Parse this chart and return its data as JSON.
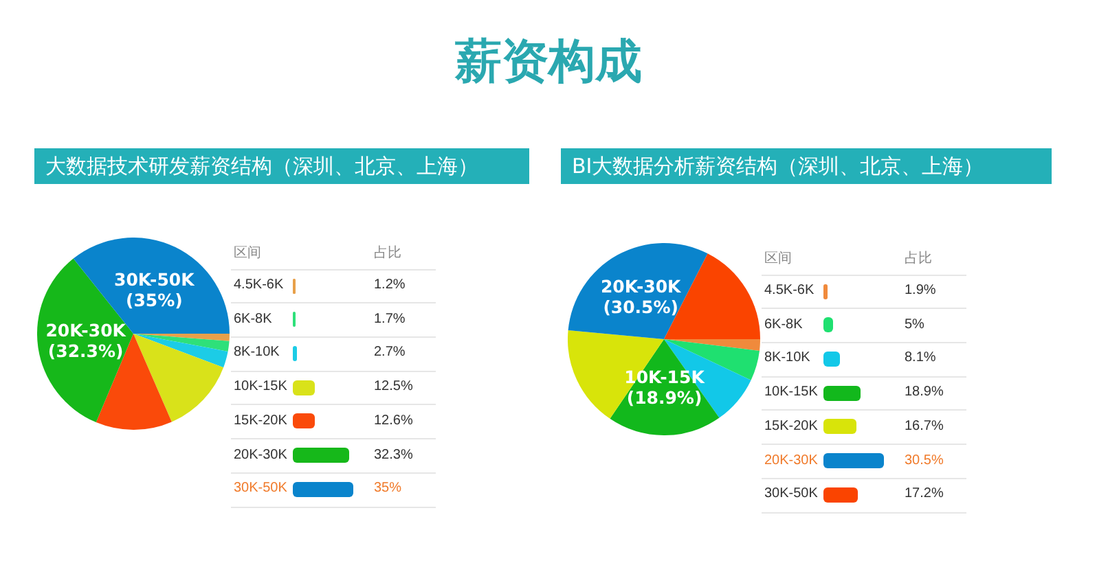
{
  "chart_data": [
    {
      "type": "pie",
      "title": "薪资构成",
      "subtitle": "大数据技术研发薪资结构（深圳、北京、上海）",
      "categories": [
        "4.5K-6K",
        "6K-8K",
        "8K-10K",
        "10K-15K",
        "15K-20K",
        "20K-30K",
        "30K-50K"
      ],
      "values": [
        1.2,
        1.7,
        2.7,
        12.5,
        12.6,
        32.3,
        35
      ],
      "colors": [
        "#e8a04a",
        "#2ee07a",
        "#1ccce6",
        "#d9e21a",
        "#fa4a0a",
        "#16b81a",
        "#0a84cc"
      ],
      "value_labels": [
        "1.2%",
        "1.7%",
        "2.7%",
        "12.5%",
        "12.6%",
        "32.3%",
        "35%"
      ],
      "legend": "right",
      "legend_title": "区间",
      "annotations": [
        "占比",
        {
          "text": "30K-50K (35%)",
          "x": "30K-50K"
        },
        {
          "text": "20K-30K (32.3%)",
          "x": "20K-30K"
        }
      ]
    },
    {
      "type": "pie",
      "subtitle": "BI大数据分析薪资结构（深圳、北京、上海）",
      "categories": [
        "4.5K-6K",
        "6K-8K",
        "8K-10K",
        "10K-15K",
        "15K-20K",
        "20K-30K",
        "30K-50K"
      ],
      "values": [
        1.9,
        5,
        8.1,
        18.9,
        16.7,
        30.5,
        17.2
      ],
      "colors": [
        "#f08a3c",
        "#1fe070",
        "#12c8e8",
        "#12b81c",
        "#d8e40a",
        "#0a84cc",
        "#fa4400"
      ],
      "value_labels": [
        "1.9%",
        "5%",
        "8.1%",
        "18.9%",
        "16.7%",
        "30.5%",
        "17.2%"
      ],
      "legend": "right",
      "legend_title": "区间",
      "annotations": [
        "占比",
        {
          "text": "20K-30K (30.5%)",
          "x": "20K-30K"
        },
        {
          "text": "10K-15K (18.9%)",
          "x": "10K-15K"
        }
      ]
    }
  ]
}
